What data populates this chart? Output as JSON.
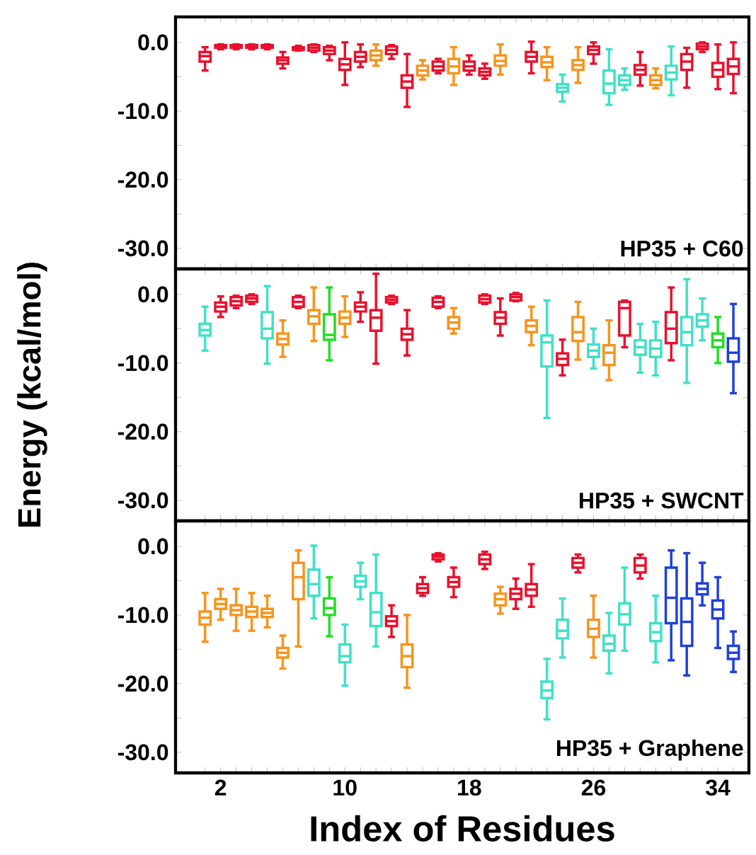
{
  "chart_data": [
    {
      "type": "box",
      "annotations": [
        "HP35 + C60"
      ],
      "ylim": [
        -33,
        3.7
      ],
      "tick_labels": "y",
      "yticks": [
        {
          "value": 0,
          "label": "0.0"
        },
        {
          "value": -5,
          "label": null
        },
        {
          "value": -10,
          "label": "-10.0"
        },
        {
          "value": -15,
          "label": null
        },
        {
          "value": -20,
          "label": "-20.0"
        },
        {
          "value": -25,
          "label": null
        },
        {
          "value": -30,
          "label": "-30.0"
        }
      ],
      "categories": [
        null,
        "2",
        null,
        null,
        null,
        null,
        null,
        null,
        null,
        "10",
        null,
        null,
        null,
        null,
        null,
        null,
        null,
        "18",
        null,
        null,
        null,
        null,
        null,
        null,
        null,
        "26",
        null,
        null,
        null,
        null,
        null,
        null,
        null,
        "34",
        null
      ],
      "colors": [
        "#e8112d",
        "#e8112d",
        "#e8112d",
        "#e8112d",
        "#e8112d",
        "#e8112d",
        "#e8112d",
        "#e8112d",
        "#e8112d",
        "#e8112d",
        "#e8112d",
        "#f7941d",
        "#e8112d",
        "#e8112d",
        "#f7941d",
        "#e8112d",
        "#f7941d",
        "#e8112d",
        "#e8112d",
        "#f7941d",
        null,
        "#e8112d",
        "#f7941d",
        "#40e0c8",
        "#f7941d",
        "#e8112d",
        "#40e0c8",
        "#40e0c8",
        "#e8112d",
        "#f7941d",
        "#40e0c8",
        "#e8112d",
        "#e8112d",
        "#e8112d",
        "#e8112d"
      ],
      "boxes": [
        {
          "low": -4.1,
          "q1": -2.8,
          "median": -2.0,
          "q3": -1.4,
          "high": -0.7
        },
        {
          "low": -1.0,
          "q1": -0.8,
          "median": -0.6,
          "q3": -0.4,
          "high": -0.3
        },
        {
          "low": -1.0,
          "q1": -0.8,
          "median": -0.6,
          "q3": -0.4,
          "high": -0.3
        },
        {
          "low": -1.0,
          "q1": -0.8,
          "median": -0.6,
          "q3": -0.4,
          "high": -0.3
        },
        {
          "low": -1.0,
          "q1": -0.8,
          "median": -0.6,
          "q3": -0.4,
          "high": -0.3
        },
        {
          "low": -3.8,
          "q1": -3.1,
          "median": -2.6,
          "q3": -2.2,
          "high": -1.4
        },
        {
          "low": -1.2,
          "q1": -1.1,
          "median": -0.9,
          "q3": -0.7,
          "high": -0.5
        },
        {
          "low": -1.4,
          "q1": -1.2,
          "median": -0.8,
          "q3": -0.4,
          "high": -0.3
        },
        {
          "low": -2.6,
          "q1": -1.7,
          "median": -1.2,
          "q3": -0.7,
          "high": -0.5
        },
        {
          "low": -6.2,
          "q1": -4.0,
          "median": -3.2,
          "q3": -2.4,
          "high": 0
        },
        {
          "low": -3.6,
          "q1": -2.8,
          "median": -2.1,
          "q3": -1.4,
          "high": -0.3
        },
        {
          "low": -3.4,
          "q1": -2.6,
          "median": -1.9,
          "q3": -1.2,
          "high": -0.3
        },
        {
          "low": -2.4,
          "q1": -1.7,
          "median": -1.1,
          "q3": -0.6,
          "high": -0.4
        },
        {
          "low": -9.4,
          "q1": -6.6,
          "median": -5.7,
          "q3": -4.8,
          "high": -1.7
        },
        {
          "low": -5.4,
          "q1": -4.8,
          "median": -4.1,
          "q3": -3.4,
          "high": -2.6
        },
        {
          "low": -4.5,
          "q1": -4.1,
          "median": -3.5,
          "q3": -2.8,
          "high": -2.4
        },
        {
          "low": -6.2,
          "q1": -4.5,
          "median": -3.5,
          "q3": -2.4,
          "high": -0.7
        },
        {
          "low": -4.7,
          "q1": -4.1,
          "median": -3.5,
          "q3": -2.8,
          "high": -1.9
        },
        {
          "low": -5.3,
          "q1": -4.8,
          "median": -4.3,
          "q3": -3.8,
          "high": -3.1
        },
        {
          "low": -4.7,
          "q1": -3.4,
          "median": -2.7,
          "q3": -1.9,
          "high": -0.3
        },
        null,
        {
          "low": -4.5,
          "q1": -2.8,
          "median": -2.1,
          "q3": -1.4,
          "high": 0.1
        },
        {
          "low": -5.5,
          "q1": -3.6,
          "median": -2.9,
          "q3": -2.1,
          "high": -0.7
        },
        {
          "low": -8.6,
          "q1": -7.2,
          "median": -6.6,
          "q3": -6.1,
          "high": -4.7
        },
        {
          "low": -5.9,
          "q1": -4.0,
          "median": -3.3,
          "q3": -2.6,
          "high": -0.7
        },
        {
          "low": -3.1,
          "q1": -1.7,
          "median": -1.1,
          "q3": -0.6,
          "high": 0
        },
        {
          "low": -9.1,
          "q1": -7.4,
          "median": -6.0,
          "q3": -4.1,
          "high": -1.0
        },
        {
          "low": -6.9,
          "q1": -6.2,
          "median": -5.5,
          "q3": -4.8,
          "high": -3.8
        },
        {
          "low": -6.3,
          "q1": -4.7,
          "median": -4.0,
          "q3": -3.3,
          "high": -1.4
        },
        {
          "low": -6.7,
          "q1": -6.2,
          "median": -5.5,
          "q3": -4.8,
          "high": -3.8
        },
        {
          "low": -7.7,
          "q1": -5.4,
          "median": -4.4,
          "q3": -3.4,
          "high": -0.6
        },
        {
          "low": -6.6,
          "q1": -4.0,
          "median": -2.8,
          "q3": -1.7,
          "high": -0.8
        },
        {
          "low": -1.4,
          "q1": -1.0,
          "median": -0.6,
          "q3": -0.2,
          "high": 0
        },
        {
          "low": -6.8,
          "q1": -5.0,
          "median": -4.0,
          "q3": -3.0,
          "high": -0.3
        },
        {
          "low": -7.4,
          "q1": -4.6,
          "median": -3.5,
          "q3": -2.4,
          "high": 0
        }
      ]
    },
    {
      "type": "box",
      "ylabel": "Energy (kcal/mol)",
      "annotations": [
        "HP35 + SWCNT"
      ],
      "ylim": [
        -33,
        3.7
      ],
      "tick_labels": "y",
      "yticks": [
        {
          "value": 0,
          "label": "0.0"
        },
        {
          "value": -5,
          "label": null
        },
        {
          "value": -10,
          "label": "-10.0"
        },
        {
          "value": -15,
          "label": null
        },
        {
          "value": -20,
          "label": "-20.0"
        },
        {
          "value": -25,
          "label": null
        },
        {
          "value": -30,
          "label": "-30.0"
        }
      ],
      "categories": [
        null,
        "2",
        null,
        null,
        null,
        null,
        null,
        null,
        null,
        "10",
        null,
        null,
        null,
        null,
        null,
        null,
        null,
        "18",
        null,
        null,
        null,
        null,
        null,
        null,
        null,
        "26",
        null,
        null,
        null,
        null,
        null,
        null,
        null,
        "34",
        null
      ],
      "colors": [
        "#40e0c8",
        "#e8112d",
        "#e8112d",
        "#e8112d",
        "#40e0c8",
        "#f7941d",
        "#e8112d",
        "#f7941d",
        "#22dd22",
        "#f7941d",
        "#e8112d",
        "#e8112d",
        "#e8112d",
        "#e8112d",
        null,
        "#e8112d",
        "#f7941d",
        null,
        "#e8112d",
        "#e8112d",
        "#e8112d",
        "#f7941d",
        "#40e0c8",
        "#e8112d",
        "#f7941d",
        "#40e0c8",
        "#f7941d",
        "#e8112d",
        "#40e0c8",
        "#40e0c8",
        "#e8112d",
        "#40e0c8",
        "#40e0c8",
        "#22dd22",
        "#1f3fdd"
      ],
      "boxes": [
        {
          "low": -8.2,
          "q1": -6.0,
          "median": -5.2,
          "q3": -4.3,
          "high": -1.8
        },
        {
          "low": -3.3,
          "q1": -2.5,
          "median": -1.8,
          "q3": -1.2,
          "high": -0.3
        },
        {
          "low": -2.0,
          "q1": -1.6,
          "median": -1.0,
          "q3": -0.4,
          "high": -0.2
        },
        {
          "low": -1.4,
          "q1": -1.1,
          "median": -0.6,
          "q3": -0.2,
          "high": 0
        },
        {
          "low": -10.1,
          "q1": -6.4,
          "median": -5.0,
          "q3": -2.6,
          "high": 1.2
        },
        {
          "low": -9.1,
          "q1": -7.3,
          "median": -6.5,
          "q3": -5.7,
          "high": -3.8
        },
        {
          "low": -2.0,
          "q1": -1.8,
          "median": -1.1,
          "q3": -0.4,
          "high": -0.2
        },
        {
          "low": -6.8,
          "q1": -4.3,
          "median": -3.2,
          "q3": -2.3,
          "high": 1.0
        },
        {
          "low": -9.6,
          "q1": -6.6,
          "median": -5.9,
          "q3": -2.9,
          "high": 1.0
        },
        {
          "low": -6.2,
          "q1": -4.3,
          "median": -3.4,
          "q3": -2.5,
          "high": -0.3
        },
        {
          "low": -4.0,
          "q1": -2.5,
          "median": -1.8,
          "q3": -1.2,
          "high": 0.3
        },
        {
          "low": -10.1,
          "q1": -5.3,
          "median": -3.4,
          "q3": -2.3,
          "high": 3.0
        },
        {
          "low": -1.4,
          "q1": -1.2,
          "median": -0.8,
          "q3": -0.4,
          "high": -0.2
        },
        {
          "low": -8.9,
          "q1": -6.6,
          "median": -5.8,
          "q3": -5.0,
          "high": -2.3
        },
        null,
        {
          "low": -2.0,
          "q1": -1.8,
          "median": -1.1,
          "q3": -0.5,
          "high": -0.3
        },
        {
          "low": -5.7,
          "q1": -5.0,
          "median": -4.1,
          "q3": -3.3,
          "high": -2.0
        },
        null,
        {
          "low": -1.4,
          "q1": -1.2,
          "median": -0.7,
          "q3": -0.2,
          "high": 0
        },
        {
          "low": -6.0,
          "q1": -4.3,
          "median": -3.4,
          "q3": -2.6,
          "high": -0.6
        },
        {
          "low": -1.0,
          "q1": -0.9,
          "median": -0.4,
          "q3": 0,
          "high": 0.2
        },
        {
          "low": -7.4,
          "q1": -5.5,
          "median": -4.6,
          "q3": -3.8,
          "high": -1.8
        },
        {
          "low": -18.0,
          "q1": -10.5,
          "median": -7.0,
          "q3": -6.0,
          "high": -0.9
        },
        {
          "low": -11.8,
          "q1": -10.3,
          "median": -9.4,
          "q3": -8.6,
          "high": -6.6
        },
        {
          "low": -9.5,
          "q1": -6.8,
          "median": -5.5,
          "q3": -3.3,
          "high": -1.1
        },
        {
          "low": -10.8,
          "q1": -9.1,
          "median": -8.2,
          "q3": -7.3,
          "high": -5.0
        },
        {
          "low": -12.5,
          "q1": -10.3,
          "median": -8.5,
          "q3": -7.4,
          "high": -3.8
        },
        {
          "low": -7.7,
          "q1": -6.0,
          "median": -2.0,
          "q3": -1.1,
          "high": -0.9
        },
        {
          "low": -11.4,
          "q1": -8.8,
          "median": -7.7,
          "q3": -6.7,
          "high": -4.3
        },
        {
          "low": -11.8,
          "q1": -9.1,
          "median": -7.9,
          "q3": -6.7,
          "high": -4.0
        },
        {
          "low": -9.6,
          "q1": -7.1,
          "median": -5.0,
          "q3": -2.6,
          "high": 1.0
        },
        {
          "low": -12.9,
          "q1": -7.4,
          "median": -5.5,
          "q3": -3.3,
          "high": 2.2
        },
        {
          "low": -6.7,
          "q1": -4.7,
          "median": -3.8,
          "q3": -2.9,
          "high": -0.6
        },
        {
          "low": -10.0,
          "q1": -7.7,
          "median": -6.7,
          "q3": -5.7,
          "high": -3.3
        },
        {
          "low": -14.4,
          "q1": -9.8,
          "median": -8.5,
          "q3": -6.4,
          "high": -1.4
        }
      ]
    },
    {
      "type": "box",
      "xlabel": "Index of Residues",
      "annotations": [
        "HP35 + Graphene"
      ],
      "ylim": [
        -33,
        3.7
      ],
      "yticks": [
        {
          "value": 0,
          "label": "0.0"
        },
        {
          "value": -5,
          "label": null
        },
        {
          "value": -10,
          "label": "-10.0"
        },
        {
          "value": -15,
          "label": null
        },
        {
          "value": -20,
          "label": "-20.0"
        },
        {
          "value": -25,
          "label": null
        },
        {
          "value": -30,
          "label": "-30.0"
        }
      ],
      "categories": [
        null,
        "2",
        null,
        null,
        null,
        null,
        null,
        null,
        null,
        "10",
        null,
        null,
        null,
        null,
        null,
        null,
        null,
        "18",
        null,
        null,
        null,
        null,
        null,
        null,
        null,
        "26",
        null,
        null,
        null,
        null,
        null,
        null,
        null,
        "34",
        null
      ],
      "colors": [
        "#f7941d",
        "#f7941d",
        "#f7941d",
        "#f7941d",
        "#f7941d",
        "#f7941d",
        "#f7941d",
        "#40e0c8",
        "#22dd22",
        "#40e0c8",
        "#40e0c8",
        "#40e0c8",
        "#e8112d",
        "#f7941d",
        "#e8112d",
        "#e8112d",
        "#e8112d",
        null,
        "#e8112d",
        "#f7941d",
        "#e8112d",
        "#e8112d",
        "#40e0c8",
        "#40e0c8",
        "#e8112d",
        "#f7941d",
        "#40e0c8",
        "#40e0c8",
        "#e8112d",
        "#40e0c8",
        "#1f3fdd",
        "#1f3fdd",
        "#1f3fdd",
        "#1f3fdd",
        "#1f3fdd"
      ],
      "boxes": [
        {
          "low": -13.9,
          "q1": -11.4,
          "median": -10.4,
          "q3": -9.5,
          "high": -6.8
        },
        {
          "low": -10.7,
          "q1": -9.1,
          "median": -8.4,
          "q3": -7.7,
          "high": -6.2
        },
        {
          "low": -12.3,
          "q1": -10.0,
          "median": -9.3,
          "q3": -8.6,
          "high": -6.2
        },
        {
          "low": -12.3,
          "q1": -10.3,
          "median": -9.5,
          "q3": -8.8,
          "high": -6.8
        },
        {
          "low": -11.8,
          "q1": -10.3,
          "median": -9.7,
          "q3": -9.1,
          "high": -7.2
        },
        {
          "low": -17.8,
          "q1": -16.2,
          "median": -15.5,
          "q3": -14.8,
          "high": -13.0
        },
        {
          "low": -14.6,
          "q1": -7.7,
          "median": -4.5,
          "q3": -2.4,
          "high": -0.6
        },
        {
          "low": -10.5,
          "q1": -7.2,
          "median": -5.5,
          "q3": -3.4,
          "high": 0.1
        },
        {
          "low": -13.1,
          "q1": -10.0,
          "median": -9.0,
          "q3": -7.6,
          "high": -4.5
        },
        {
          "low": -20.3,
          "q1": -16.9,
          "median": -16.0,
          "q3": -14.3,
          "high": -11.4
        },
        {
          "low": -7.7,
          "q1": -5.9,
          "median": -5.1,
          "q3": -4.3,
          "high": -2.4
        },
        {
          "low": -14.6,
          "q1": -11.6,
          "median": -9.6,
          "q3": -6.8,
          "high": -1.2
        },
        {
          "low": -13.2,
          "q1": -11.6,
          "median": -10.9,
          "q3": -10.2,
          "high": -8.6
        },
        {
          "low": -20.6,
          "q1": -17.6,
          "median": -16.0,
          "q3": -14.3,
          "high": -10.0
        },
        {
          "low": -7.2,
          "q1": -6.8,
          "median": -6.1,
          "q3": -5.5,
          "high": -4.5
        },
        {
          "low": -2.2,
          "q1": -1.9,
          "median": -1.5,
          "q3": -1.2,
          "high": -1.0
        },
        {
          "low": -7.4,
          "q1": -5.9,
          "median": -5.2,
          "q3": -4.5,
          "high": -3.1
        },
        null,
        {
          "low": -3.3,
          "q1": -2.6,
          "median": -1.9,
          "q3": -1.2,
          "high": -0.8
        },
        {
          "low": -9.8,
          "q1": -8.6,
          "median": -7.7,
          "q3": -6.9,
          "high": -5.9
        },
        {
          "low": -9.1,
          "q1": -7.7,
          "median": -6.9,
          "q3": -6.2,
          "high": -4.7
        },
        {
          "low": -8.8,
          "q1": -7.2,
          "median": -6.3,
          "q3": -5.5,
          "high": -2.6
        },
        {
          "low": -25.2,
          "q1": -22.1,
          "median": -21.0,
          "q3": -19.7,
          "high": -16.4
        },
        {
          "low": -16.2,
          "q1": -13.4,
          "median": -12.3,
          "q3": -10.7,
          "high": -7.6
        },
        {
          "low": -3.8,
          "q1": -3.1,
          "median": -2.4,
          "q3": -1.7,
          "high": -1.2
        },
        {
          "low": -16.2,
          "q1": -13.2,
          "median": -12.0,
          "q3": -10.7,
          "high": -7.2
        },
        {
          "low": -18.5,
          "q1": -15.2,
          "median": -14.2,
          "q3": -13.0,
          "high": -9.7
        },
        {
          "low": -15.2,
          "q1": -11.4,
          "median": -9.9,
          "q3": -8.3,
          "high": -3.1
        },
        {
          "low": -4.7,
          "q1": -3.8,
          "median": -2.8,
          "q3": -1.7,
          "high": -1.2
        },
        {
          "low": -16.9,
          "q1": -13.8,
          "median": -12.5,
          "q3": -11.2,
          "high": -7.2
        },
        {
          "low": -16.6,
          "q1": -11.2,
          "median": -7.5,
          "q3": -3.1,
          "high": -0.6
        },
        {
          "low": -18.8,
          "q1": -14.5,
          "median": -11.0,
          "q3": -7.6,
          "high": -1.0
        },
        {
          "low": -8.6,
          "q1": -7.0,
          "median": -6.2,
          "q3": -5.4,
          "high": -2.4
        },
        {
          "low": -14.8,
          "q1": -10.5,
          "median": -9.2,
          "q3": -7.9,
          "high": -4.5
        },
        {
          "low": -18.3,
          "q1": -16.4,
          "median": -15.5,
          "q3": -14.5,
          "high": -12.4
        }
      ]
    }
  ]
}
